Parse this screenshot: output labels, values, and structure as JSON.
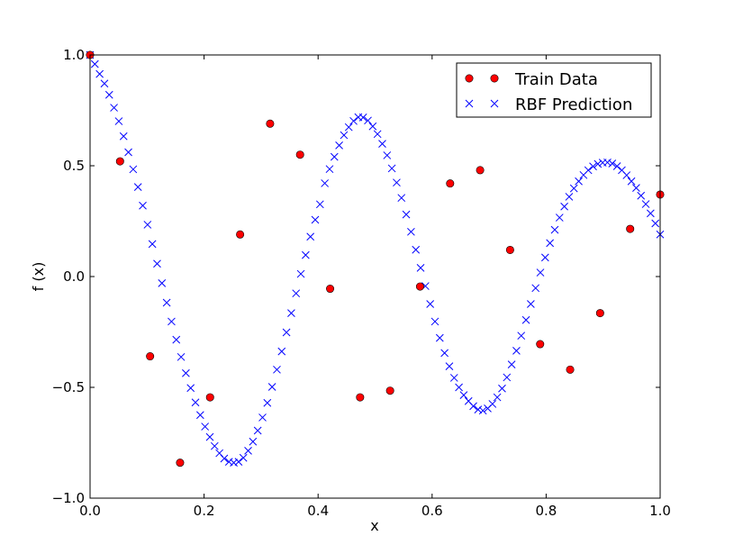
{
  "chart_data": {
    "type": "scatter",
    "title": "",
    "xlabel": "x",
    "ylabel": "f (x)",
    "xlim": [
      0.0,
      1.0
    ],
    "ylim": [
      -1.0,
      1.0
    ],
    "xticks": [
      "0.0",
      "0.2",
      "0.4",
      "0.6",
      "0.8",
      "1.0"
    ],
    "yticks": [
      "−1.0",
      "−0.5",
      "0.0",
      "0.5",
      "1.0"
    ],
    "grid": false,
    "legend_position": "top-right",
    "series": [
      {
        "name": "Train Data",
        "marker": "circle",
        "color": "#ff0000",
        "x": [
          0.0,
          0.0526,
          0.1053,
          0.1579,
          0.2105,
          0.2632,
          0.3158,
          0.3684,
          0.4211,
          0.4737,
          0.5263,
          0.5789,
          0.6316,
          0.6842,
          0.7368,
          0.7895,
          0.8421,
          0.8947,
          0.9474,
          1.0
        ],
        "y": [
          1.0,
          0.52,
          -0.36,
          -0.84,
          -0.545,
          0.19,
          0.69,
          0.55,
          -0.055,
          -0.545,
          -0.515,
          -0.045,
          0.42,
          0.48,
          0.12,
          -0.305,
          -0.42,
          -0.165,
          0.215,
          0.37
        ]
      },
      {
        "name": "RBF Prediction",
        "marker": "x",
        "color": "#0000ff",
        "x_range": [
          0.0,
          1.0
        ],
        "count": 120,
        "y": [
          1.0,
          0.959,
          0.914,
          0.871,
          0.82,
          0.762,
          0.701,
          0.633,
          0.561,
          0.484,
          0.404,
          0.32,
          0.234,
          0.147,
          0.058,
          -0.03,
          -0.118,
          -0.203,
          -0.285,
          -0.363,
          -0.436,
          -0.503,
          -0.568,
          -0.625,
          -0.677,
          -0.724,
          -0.765,
          -0.797,
          -0.821,
          -0.836,
          -0.84,
          -0.836,
          -0.818,
          -0.786,
          -0.745,
          -0.695,
          -0.636,
          -0.57,
          -0.498,
          -0.42,
          -0.338,
          -0.252,
          -0.165,
          -0.076,
          0.012,
          0.097,
          0.18,
          0.256,
          0.326,
          0.421,
          0.485,
          0.54,
          0.592,
          0.638,
          0.674,
          0.702,
          0.719,
          0.718,
          0.704,
          0.678,
          0.643,
          0.599,
          0.547,
          0.488,
          0.424,
          0.355,
          0.28,
          0.202,
          0.121,
          0.039,
          -0.043,
          -0.124,
          -0.203,
          -0.277,
          -0.345,
          -0.405,
          -0.457,
          -0.5,
          -0.535,
          -0.562,
          -0.585,
          -0.6,
          -0.605,
          -0.595,
          -0.575,
          -0.545,
          -0.505,
          -0.455,
          -0.397,
          -0.335,
          -0.267,
          -0.196,
          -0.124,
          -0.052,
          0.018,
          0.086,
          0.151,
          0.211,
          0.266,
          0.316,
          0.36,
          0.398,
          0.43,
          0.458,
          0.48,
          0.497,
          0.508,
          0.514,
          0.515,
          0.51,
          0.498,
          0.48,
          0.457,
          0.43,
          0.4,
          0.365,
          0.327,
          0.285,
          0.24,
          0.19
        ]
      }
    ]
  }
}
